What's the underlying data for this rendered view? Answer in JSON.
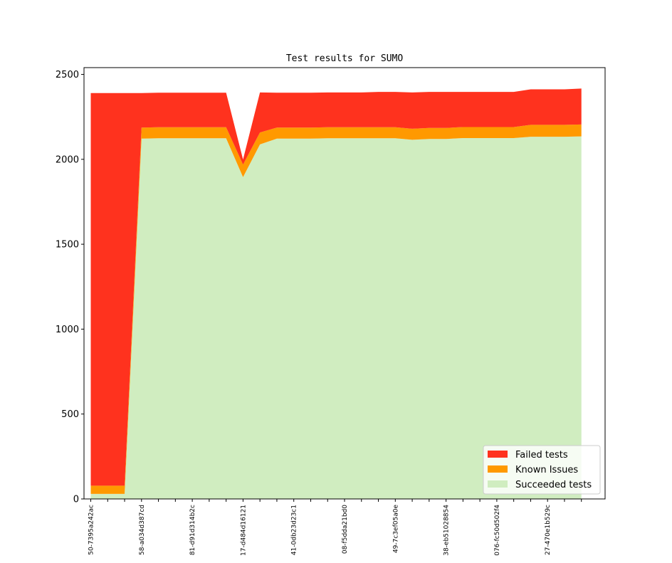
{
  "chart_data": {
    "type": "area",
    "title": "Test results for SUMO",
    "xlabel": "",
    "ylabel": "",
    "ylim": [
      0,
      2540
    ],
    "yticks": [
      0,
      500,
      1000,
      1500,
      2000,
      2500
    ],
    "ytick_labels": [
      "0",
      "500",
      "1000",
      "1500",
      "2000",
      "2500"
    ],
    "x": [
      0,
      1,
      2,
      3,
      4,
      5,
      6,
      7,
      8,
      9,
      10,
      11,
      12,
      13,
      14,
      15,
      16,
      17,
      18,
      19,
      20,
      21,
      22,
      23,
      24,
      25,
      26,
      27,
      28,
      29
    ],
    "xlim": [
      -0.4,
      30.4
    ],
    "xtick_labels": [
      {
        "x": 0,
        "label": "50-7395a242ac"
      },
      {
        "x": 3,
        "label": "58-a034d387cd"
      },
      {
        "x": 6,
        "label": "81-d91d314b2c"
      },
      {
        "x": 9,
        "label": "17-d484d16121"
      },
      {
        "x": 12,
        "label": "41-0db23d23c1"
      },
      {
        "x": 15,
        "label": "08-f5dda21bd0"
      },
      {
        "x": 18,
        "label": "49-7c3ef05a0e"
      },
      {
        "x": 21,
        "label": "38-eb51028854"
      },
      {
        "x": 24,
        "label": "076-fc50d502f4"
      },
      {
        "x": 27,
        "label": "27-470e1b529c"
      }
    ],
    "stacking": "stacked",
    "legend_position": "lower right",
    "grid": false,
    "series": [
      {
        "name": "Succeeded tests",
        "color": "#d0edc0",
        "values": [
          30,
          30,
          30,
          2122,
          2124,
          2124,
          2124,
          2124,
          2124,
          1895,
          2088,
          2122,
          2122,
          2122,
          2124,
          2124,
          2124,
          2124,
          2124,
          2115,
          2120,
          2120,
          2125,
          2125,
          2125,
          2125,
          2133,
          2133,
          2133,
          2135
        ]
      },
      {
        "name": "Known Issues",
        "color": "#ff9900",
        "values": [
          48,
          48,
          48,
          65,
          65,
          65,
          65,
          65,
          65,
          74,
          70,
          65,
          65,
          65,
          65,
          65,
          65,
          65,
          65,
          65,
          65,
          65,
          65,
          65,
          65,
          65,
          70,
          70,
          70,
          70
        ]
      },
      {
        "name": "Failed tests",
        "color": "#ff321e",
        "values": [
          2312,
          2312,
          2312,
          203,
          203,
          203,
          203,
          203,
          203,
          30,
          236,
          205,
          205,
          205,
          205,
          205,
          205,
          208,
          208,
          214,
          212,
          212,
          207,
          207,
          207,
          207,
          209,
          209,
          209,
          212
        ]
      }
    ]
  }
}
